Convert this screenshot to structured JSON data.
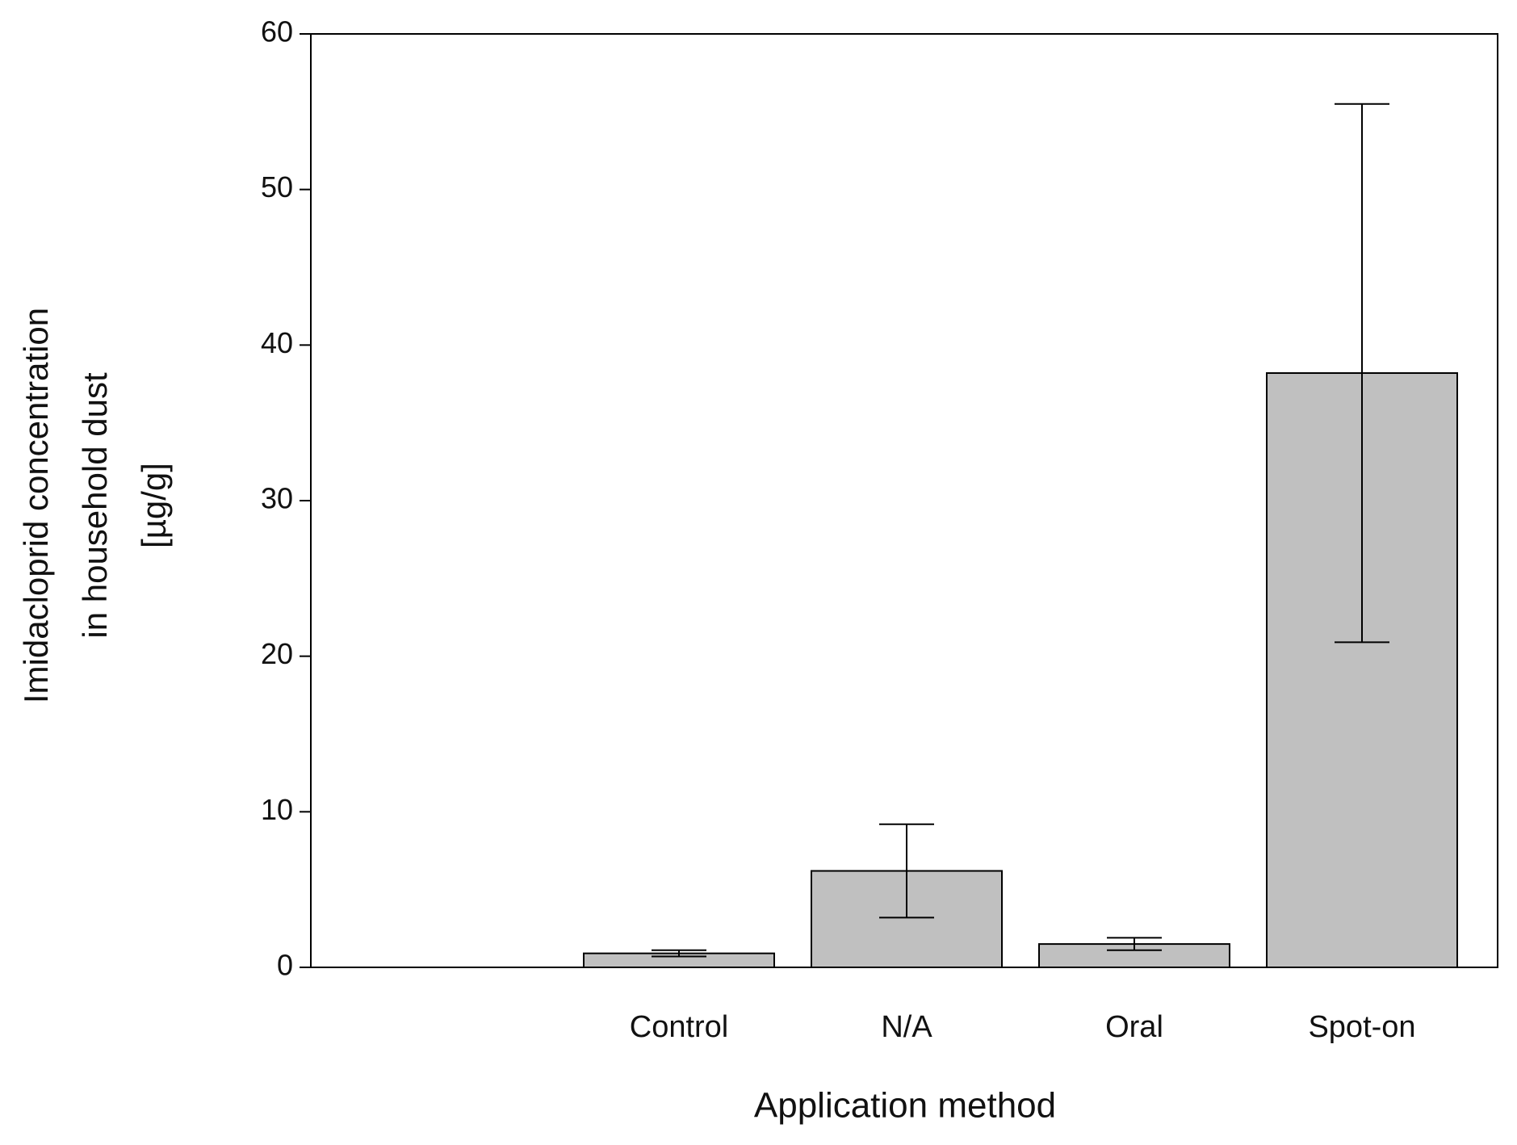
{
  "chart_data": {
    "type": "bar",
    "xlabel": "Application method",
    "ylabel": [
      "Imidacloprid concentration",
      "in household dust",
      "[µg/g]"
    ],
    "categories": [
      null,
      "Control",
      "N/A",
      "Oral",
      "Spot-on"
    ],
    "values": [
      null,
      0.9,
      6.2,
      1.5,
      38.2
    ],
    "errors": [
      null,
      0.2,
      3.0,
      0.4,
      17.3
    ],
    "color": "#c0c0c0",
    "ylim": [
      0,
      60
    ],
    "yticks": [
      0,
      10,
      20,
      30,
      40,
      50,
      60
    ]
  }
}
